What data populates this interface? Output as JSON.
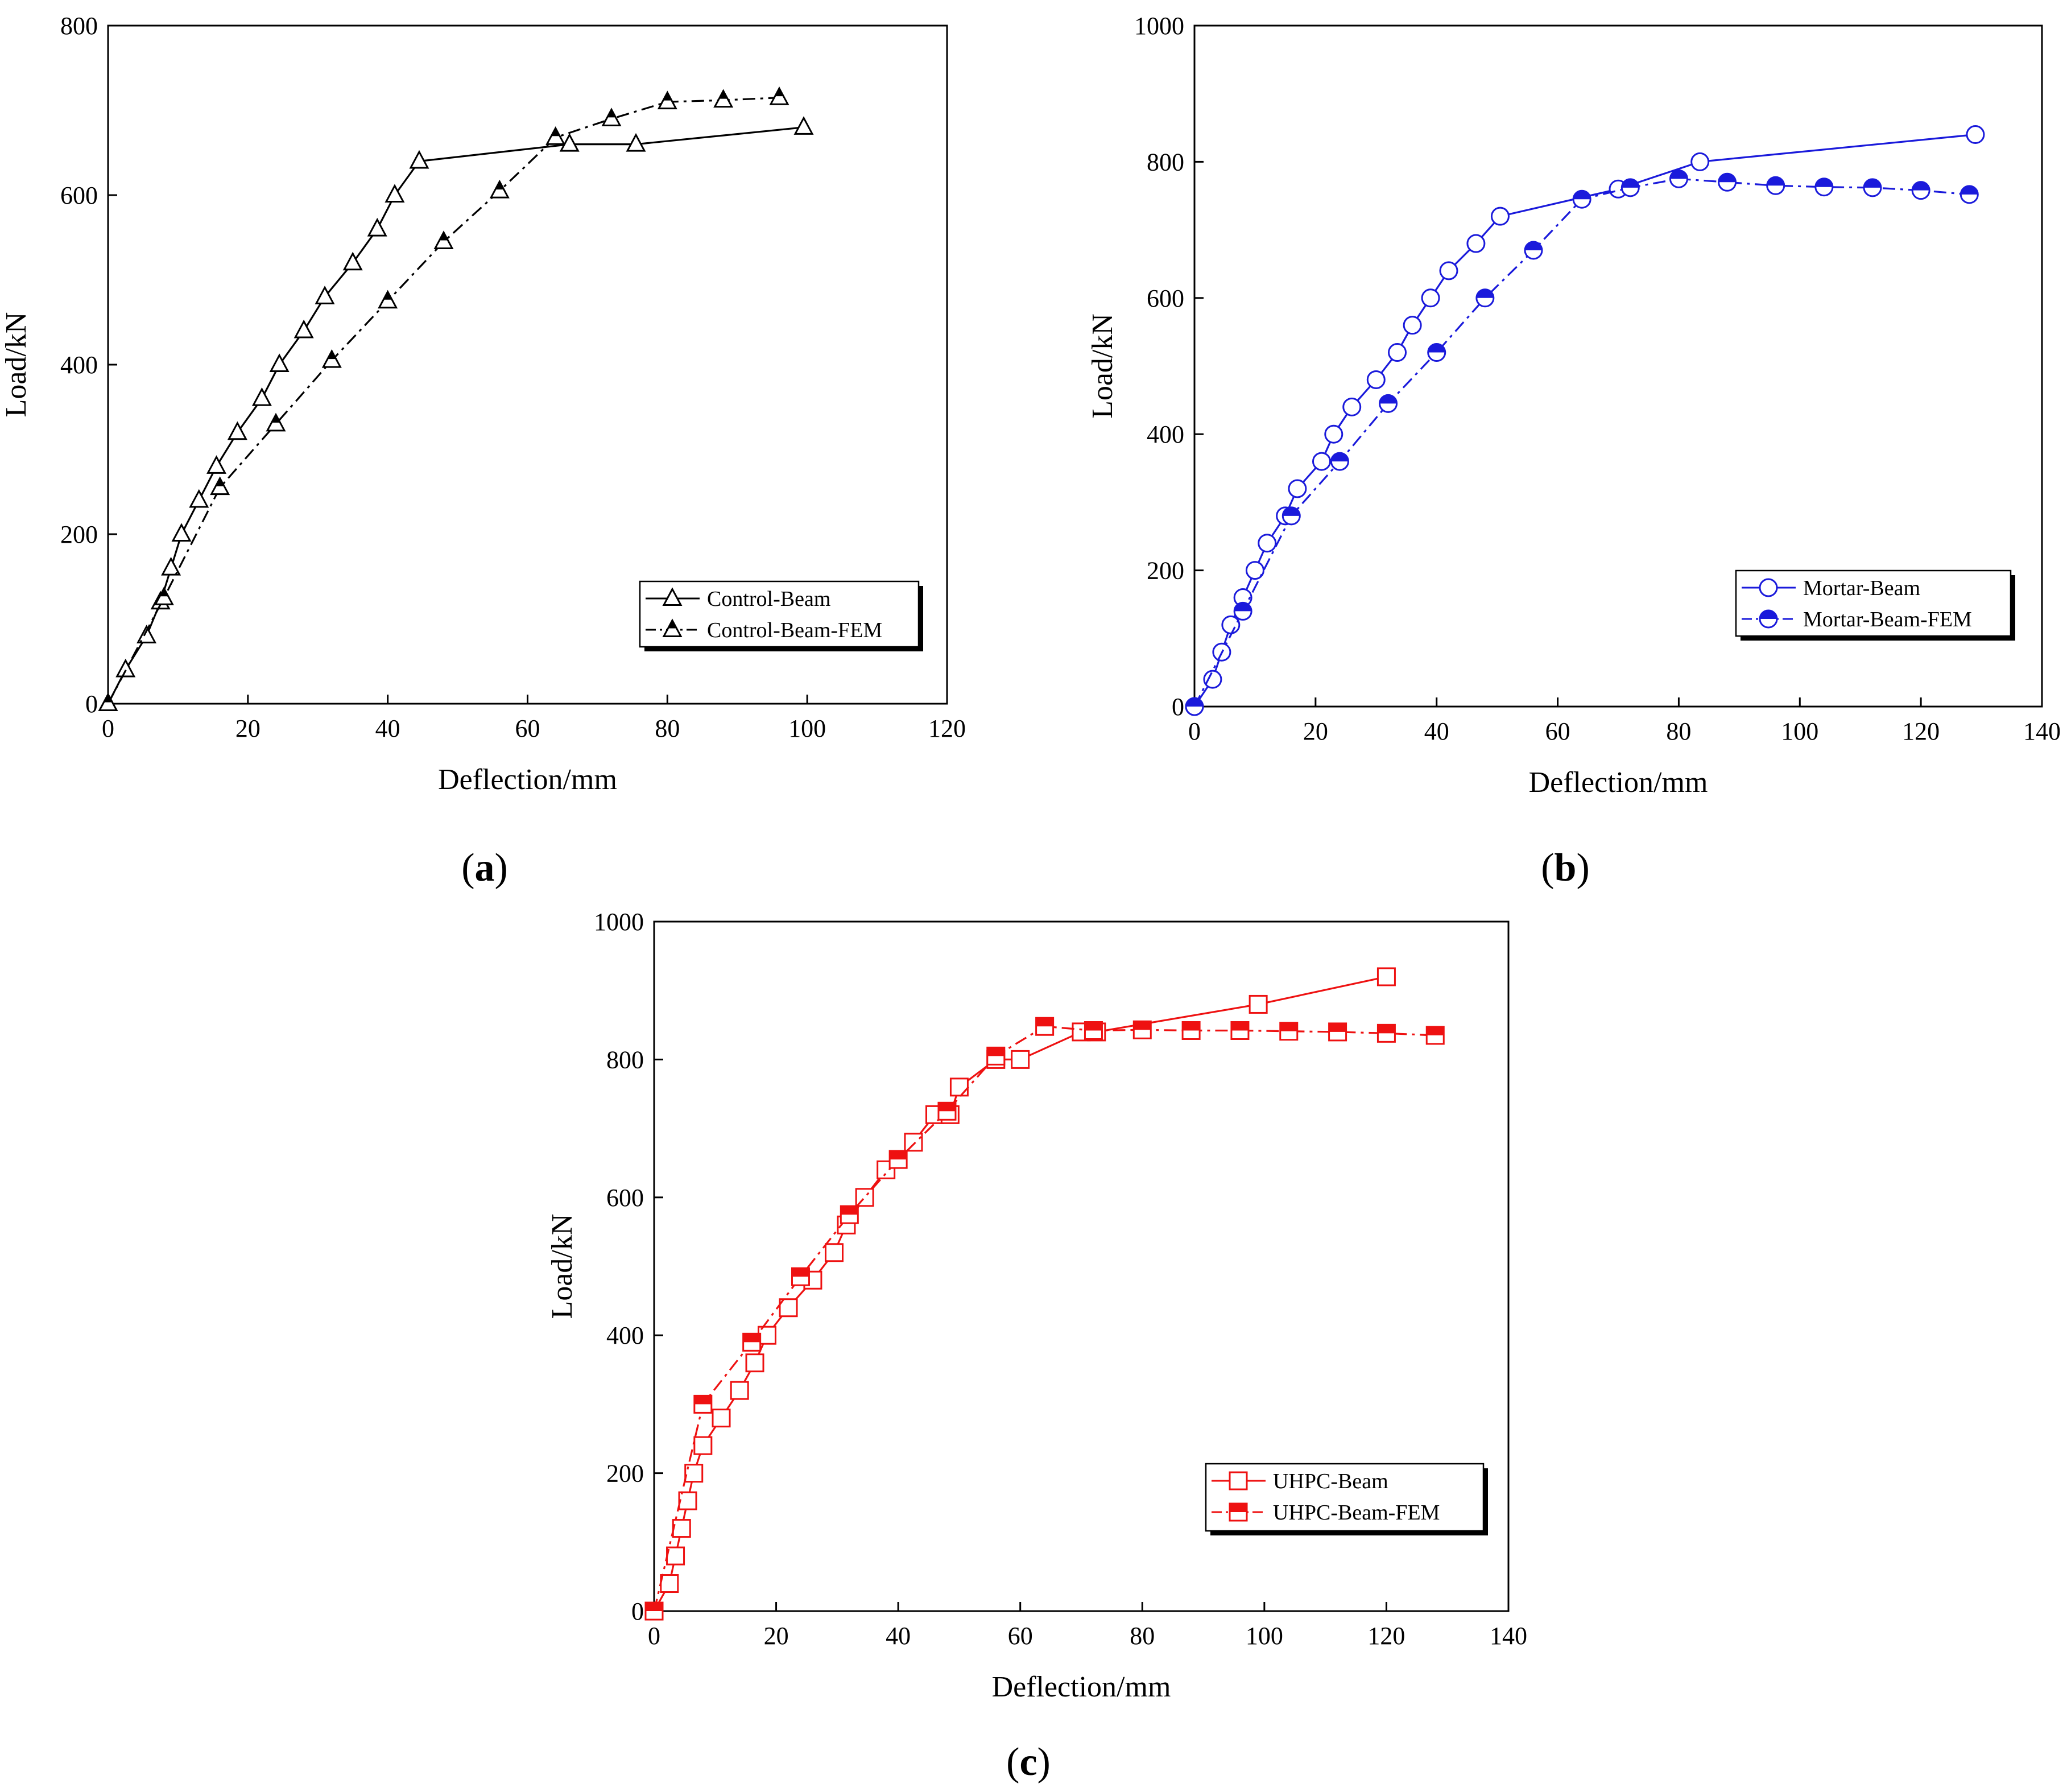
{
  "chart_data": [
    {
      "id": "a",
      "type": "line",
      "panel_label": "a",
      "xlabel": "Deflection/mm",
      "ylabel": "Load/kN",
      "xlim": [
        0,
        120
      ],
      "ylim": [
        0,
        800
      ],
      "xticks": [
        0,
        20,
        40,
        60,
        80,
        100,
        120
      ],
      "yticks": [
        0,
        200,
        400,
        600,
        800
      ],
      "legend_position": "bottom-right",
      "series": [
        {
          "name": "Control-Beam",
          "color": "#000000",
          "line": "solid",
          "marker": "triangle-open",
          "x": [
            0,
            2.5,
            5.5,
            7.5,
            9,
            10.5,
            13,
            15.5,
            18.5,
            22,
            24.5,
            28,
            31,
            35,
            38.5,
            41,
            44.5,
            66,
            75.5,
            99.5
          ],
          "y": [
            0,
            40,
            80,
            120,
            160,
            200,
            240,
            280,
            320,
            360,
            400,
            440,
            480,
            520,
            560,
            600,
            640,
            660,
            660,
            680
          ]
        },
        {
          "name": "Control-Beam-FEM",
          "color": "#000000",
          "line": "dashdot",
          "marker": "triangle-half",
          "x": [
            0,
            8,
            16,
            24,
            32,
            40,
            48,
            56,
            64,
            72,
            80,
            88,
            96
          ],
          "y": [
            0,
            125,
            255,
            330,
            405,
            475,
            545,
            605,
            668,
            690,
            710,
            712,
            715
          ]
        }
      ]
    },
    {
      "id": "b",
      "type": "line",
      "panel_label": "b",
      "xlabel": "Deflection/mm",
      "ylabel": "Load/kN",
      "xlim": [
        0,
        140
      ],
      "ylim": [
        0,
        1000
      ],
      "xticks": [
        0,
        20,
        40,
        60,
        80,
        100,
        120,
        140
      ],
      "yticks": [
        0,
        200,
        400,
        600,
        800,
        1000
      ],
      "legend_position": "bottom-right",
      "series": [
        {
          "name": "Mortar-Beam",
          "color": "#1a1adb",
          "line": "solid",
          "marker": "circle-open",
          "x": [
            0,
            3,
            4.5,
            6,
            8,
            10,
            12,
            15,
            17,
            21,
            23,
            26,
            30,
            33.5,
            36,
            39,
            42,
            46.5,
            50.5,
            70,
            83.5,
            129
          ],
          "y": [
            0,
            40,
            80,
            120,
            160,
            200,
            240,
            280,
            320,
            360,
            400,
            440,
            480,
            520,
            560,
            600,
            640,
            680,
            720,
            760,
            800,
            840
          ]
        },
        {
          "name": "Mortar-Beam-FEM",
          "color": "#1a1adb",
          "line": "dashdot",
          "marker": "circle-half",
          "x": [
            0,
            8,
            16,
            24,
            32,
            40,
            48,
            56,
            64,
            72,
            80,
            88,
            96,
            104,
            112,
            120,
            128
          ],
          "y": [
            0,
            140,
            280,
            360,
            445,
            520,
            600,
            670,
            745,
            762,
            775,
            770,
            765,
            763,
            762,
            758,
            752
          ]
        }
      ]
    },
    {
      "id": "c",
      "type": "line",
      "panel_label": "c",
      "xlabel": "Deflection/mm",
      "ylabel": "Load/kN",
      "xlim": [
        0,
        140
      ],
      "ylim": [
        0,
        1000
      ],
      "xticks": [
        0,
        20,
        40,
        60,
        80,
        100,
        120,
        140
      ],
      "yticks": [
        0,
        200,
        400,
        600,
        800,
        1000
      ],
      "legend_position": "bottom-right",
      "series": [
        {
          "name": "UHPC-Beam",
          "color": "#ee1111",
          "line": "solid",
          "marker": "square-open",
          "x": [
            0,
            2.5,
            3.5,
            4.5,
            5.5,
            6.5,
            8,
            11,
            14,
            16.5,
            18.5,
            22,
            26,
            29.5,
            31.5,
            34.5,
            38,
            42.5,
            46,
            48.5,
            50,
            56,
            60,
            70,
            72.5,
            99,
            120
          ],
          "y": [
            0,
            40,
            80,
            120,
            160,
            200,
            240,
            280,
            320,
            360,
            400,
            440,
            480,
            520,
            560,
            600,
            640,
            680,
            720,
            720,
            760,
            800,
            800,
            840,
            840,
            880,
            920
          ]
        },
        {
          "name": "UHPC-Beam-FEM",
          "color": "#ee1111",
          "line": "dashdot",
          "marker": "square-half",
          "x": [
            0,
            8,
            16,
            24,
            32,
            40,
            48,
            56,
            64,
            72,
            80,
            88,
            96,
            104,
            112,
            120,
            128
          ],
          "y": [
            0,
            300,
            390,
            485,
            575,
            655,
            725,
            805,
            848,
            842,
            843,
            842,
            842,
            841,
            840,
            838,
            835
          ]
        }
      ]
    }
  ]
}
